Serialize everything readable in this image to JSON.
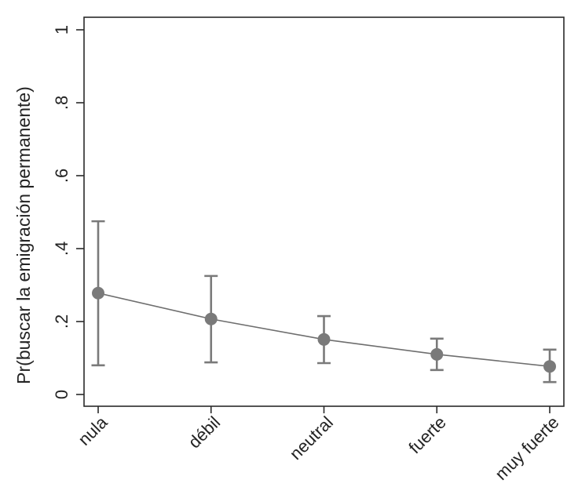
{
  "chart_data": {
    "type": "line",
    "title": "",
    "xlabel": "",
    "ylabel": "Pr(buscar la emigración permanente)",
    "categories": [
      "nula",
      "débil",
      "neutral",
      "fuerte",
      "muy fuerte"
    ],
    "values": [
      0.278,
      0.207,
      0.151,
      0.11,
      0.077
    ],
    "ci_low": [
      0.08,
      0.088,
      0.086,
      0.067,
      0.034
    ],
    "ci_high": [
      0.475,
      0.325,
      0.215,
      0.153,
      0.123
    ],
    "yticks": [
      0,
      0.2,
      0.4,
      0.6,
      0.8,
      1
    ],
    "ytick_labels": [
      "0",
      ".2",
      ".4",
      ".6",
      ".8",
      "1"
    ],
    "ylim": [
      -0.03,
      1.03
    ],
    "grid": false,
    "legend_position": "none",
    "marker": "circle",
    "error_bars": "capped",
    "x_label_angle_deg": -45,
    "y_label_angle_deg": -90,
    "colors": {
      "series": "#7a7a7a",
      "line": "#6e6e6e",
      "axis": "#2a2a2a",
      "text": "#232323",
      "background": "#ffffff"
    }
  }
}
